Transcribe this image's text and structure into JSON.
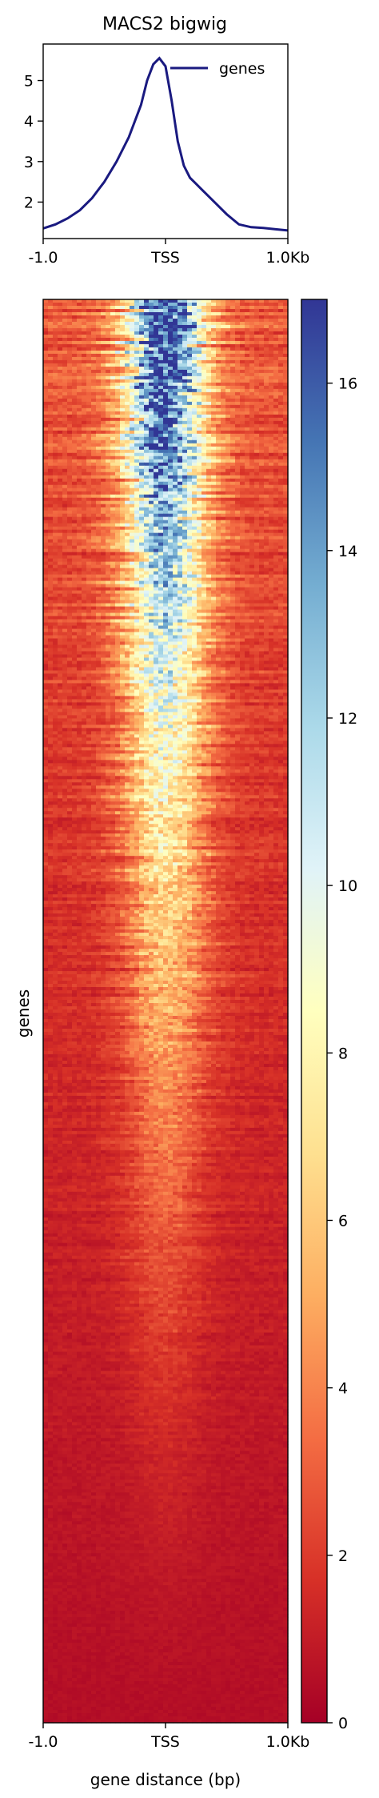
{
  "chart_data": [
    {
      "type": "line",
      "title": "MACS2 bigwig",
      "xlabel": "",
      "ylabel": "",
      "x_tick_labels": [
        "-1.0",
        "TSS",
        "1.0Kb"
      ],
      "x": [
        -1000,
        -900,
        -800,
        -700,
        -600,
        -500,
        -400,
        -300,
        -200,
        -150,
        -100,
        -50,
        0,
        50,
        100,
        150,
        200,
        250,
        300,
        400,
        500,
        600,
        700,
        800,
        900,
        1000
      ],
      "series": [
        {
          "name": "genes",
          "color": "#1a1a80",
          "values": [
            1.35,
            1.45,
            1.6,
            1.8,
            2.1,
            2.5,
            3.0,
            3.6,
            4.4,
            5.0,
            5.4,
            5.55,
            5.35,
            4.5,
            3.5,
            2.9,
            2.6,
            2.45,
            2.3,
            2.0,
            1.7,
            1.45,
            1.38,
            1.36,
            1.33,
            1.3
          ]
        }
      ],
      "y_ticks": [
        2,
        3,
        4,
        5
      ],
      "ylim": [
        1.1,
        5.9
      ],
      "xlim": [
        -1000,
        1000
      ],
      "legend": "top-right",
      "grid": false
    },
    {
      "type": "heatmap",
      "ylabel": "genes",
      "xlabel": "gene distance (bp)",
      "x_tick_labels": [
        "-1.0",
        "TSS",
        "1.0Kb"
      ],
      "colormap": "RdYlBu",
      "colorbar_ticks": [
        0,
        2,
        4,
        6,
        8,
        10,
        12,
        14,
        16
      ],
      "colorbar_range": [
        0,
        17
      ],
      "row_profile": {
        "description": "rows sorted by signal; strongest TSS enrichment at top",
        "top_rows_peak_value": 16,
        "bottom_rows_value": 0.5
      }
    }
  ]
}
